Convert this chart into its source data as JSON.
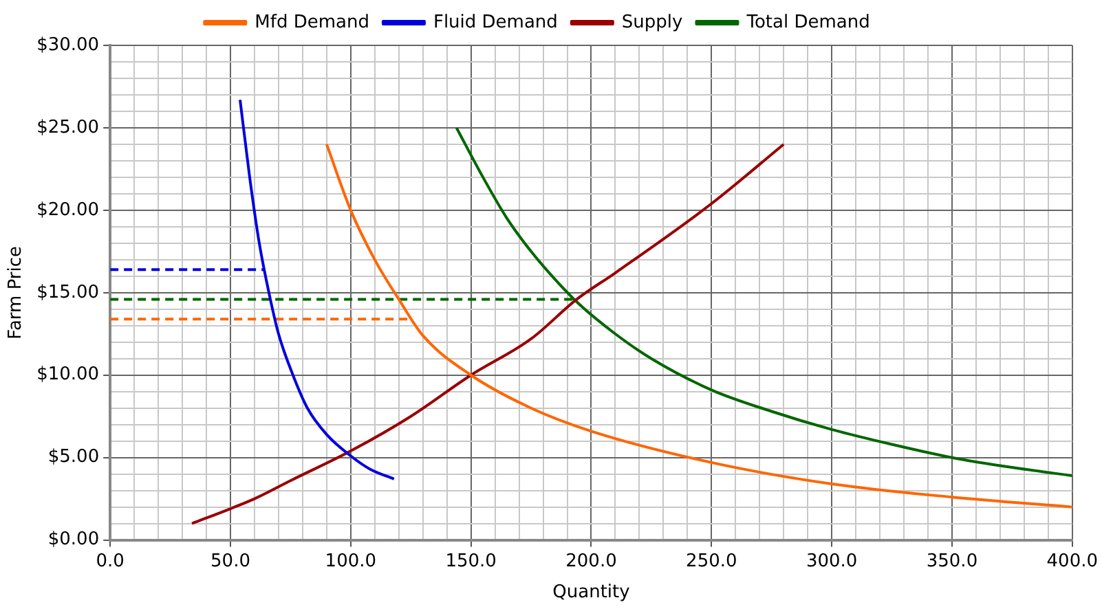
{
  "chart_data": {
    "type": "line",
    "xlabel": "Quantity",
    "ylabel": "Farm Price",
    "legend": "top",
    "grid": true,
    "marker": "none",
    "xlim": [
      0,
      400
    ],
    "ylim": [
      0,
      30
    ],
    "xticks": [
      {
        "value": 0,
        "label": "0.0"
      },
      {
        "value": 10,
        "label": null
      },
      {
        "value": 20,
        "label": null
      },
      {
        "value": 30,
        "label": null
      },
      {
        "value": 40,
        "label": null
      },
      {
        "value": 50,
        "label": "50.0"
      },
      {
        "value": 60,
        "label": null
      },
      {
        "value": 70,
        "label": null
      },
      {
        "value": 80,
        "label": null
      },
      {
        "value": 90,
        "label": null
      },
      {
        "value": 100,
        "label": "100.0"
      },
      {
        "value": 110,
        "label": null
      },
      {
        "value": 120,
        "label": null
      },
      {
        "value": 130,
        "label": null
      },
      {
        "value": 140,
        "label": null
      },
      {
        "value": 150,
        "label": "150.0"
      },
      {
        "value": 160,
        "label": null
      },
      {
        "value": 170,
        "label": null
      },
      {
        "value": 180,
        "label": null
      },
      {
        "value": 190,
        "label": null
      },
      {
        "value": 200,
        "label": "200.0"
      },
      {
        "value": 210,
        "label": null
      },
      {
        "value": 220,
        "label": null
      },
      {
        "value": 230,
        "label": null
      },
      {
        "value": 240,
        "label": null
      },
      {
        "value": 250,
        "label": "250.0"
      },
      {
        "value": 260,
        "label": null
      },
      {
        "value": 270,
        "label": null
      },
      {
        "value": 280,
        "label": null
      },
      {
        "value": 290,
        "label": null
      },
      {
        "value": 300,
        "label": "300.0"
      },
      {
        "value": 310,
        "label": null
      },
      {
        "value": 320,
        "label": null
      },
      {
        "value": 330,
        "label": null
      },
      {
        "value": 340,
        "label": null
      },
      {
        "value": 350,
        "label": "350.0"
      },
      {
        "value": 360,
        "label": null
      },
      {
        "value": 370,
        "label": null
      },
      {
        "value": 380,
        "label": null
      },
      {
        "value": 390,
        "label": null
      },
      {
        "value": 400,
        "label": "400.0"
      }
    ],
    "yticks": [
      {
        "value": 0,
        "label": "$0.00"
      },
      {
        "value": 1,
        "label": null
      },
      {
        "value": 2,
        "label": null
      },
      {
        "value": 3,
        "label": null
      },
      {
        "value": 4,
        "label": null
      },
      {
        "value": 5,
        "label": "$5.00"
      },
      {
        "value": 6,
        "label": null
      },
      {
        "value": 7,
        "label": null
      },
      {
        "value": 8,
        "label": null
      },
      {
        "value": 9,
        "label": null
      },
      {
        "value": 10,
        "label": "$10.00"
      },
      {
        "value": 11,
        "label": null
      },
      {
        "value": 12,
        "label": null
      },
      {
        "value": 13,
        "label": null
      },
      {
        "value": 14,
        "label": null
      },
      {
        "value": 15,
        "label": "$15.00"
      },
      {
        "value": 16,
        "label": null
      },
      {
        "value": 17,
        "label": null
      },
      {
        "value": 18,
        "label": null
      },
      {
        "value": 19,
        "label": null
      },
      {
        "value": 20,
        "label": "$20.00"
      },
      {
        "value": 21,
        "label": null
      },
      {
        "value": 22,
        "label": null
      },
      {
        "value": 23,
        "label": null
      },
      {
        "value": 24,
        "label": null
      },
      {
        "value": 25,
        "label": "$25.00"
      },
      {
        "value": 26,
        "label": null
      },
      {
        "value": 27,
        "label": null
      },
      {
        "value": 28,
        "label": null
      },
      {
        "value": 29,
        "label": null
      },
      {
        "value": 30,
        "label": "$30.00"
      }
    ],
    "series": [
      {
        "name": "Mfd Demand",
        "color": "#ff6600",
        "x": [
          90,
          100,
          110,
          120,
          130,
          150,
          175,
          200,
          250,
          300,
          350,
          400
        ],
        "values": [
          24,
          20,
          17,
          14.6,
          12.4,
          10,
          8,
          6.6,
          4.7,
          3.4,
          2.6,
          2.0
        ]
      },
      {
        "name": "Fluid Demand",
        "color": "#0000dd",
        "x": [
          54,
          58,
          62,
          66,
          70,
          76,
          82,
          90,
          100,
          108,
          118
        ],
        "values": [
          26.7,
          22,
          18,
          15,
          12.5,
          10,
          8,
          6.4,
          5.1,
          4.3,
          3.7
        ]
      },
      {
        "name": "Supply",
        "color": "#990000",
        "x": [
          34,
          50,
          60,
          75,
          100,
          125,
          150,
          175,
          194,
          210,
          250,
          280
        ],
        "values": [
          1.0,
          1.9,
          2.5,
          3.6,
          5.4,
          7.5,
          10,
          12.2,
          14.6,
          16.2,
          20.4,
          24
        ]
      },
      {
        "name": "Total Demand",
        "color": "#006600",
        "x": [
          144,
          155,
          165,
          175,
          185,
          195,
          210,
          225,
          250,
          275,
          300,
          325,
          350,
          375,
          400
        ],
        "values": [
          25,
          22,
          19.5,
          17.5,
          15.8,
          14.3,
          12.5,
          11,
          9.1,
          7.8,
          6.7,
          5.8,
          5.0,
          4.4,
          3.9
        ]
      },
      {
        "color": "#0000dd",
        "line_style": "dashed",
        "x": [
          0,
          64
        ],
        "values": [
          16.4,
          16.4
        ]
      },
      {
        "color": "#006600",
        "line_style": "dashed",
        "x": [
          0,
          193
        ],
        "values": [
          14.6,
          14.6
        ]
      },
      {
        "color": "#ff6600",
        "line_style": "dashed",
        "x": [
          0,
          124
        ],
        "values": [
          13.4,
          13.4
        ]
      }
    ]
  }
}
